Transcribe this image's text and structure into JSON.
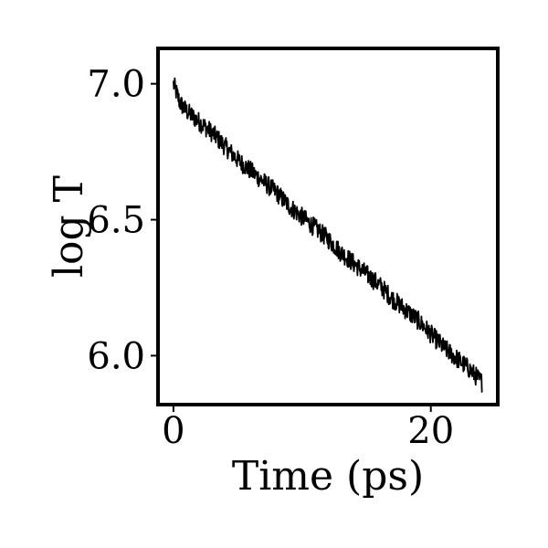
{
  "chart_data": {
    "type": "line",
    "title": "",
    "xlabel": "Time (ps)",
    "ylabel": "log T",
    "xlim": [
      -1.2,
      25.2
    ],
    "ylim": [
      5.82,
      7.13
    ],
    "xticks": [
      0,
      20
    ],
    "xtick_labels": [
      "0",
      "20"
    ],
    "yticks": [
      6.0,
      6.5,
      7.0
    ],
    "ytick_labels": [
      "6.0",
      "6.5",
      "7.0"
    ],
    "grid": false,
    "legend": "none",
    "line_color": "#000000",
    "series": [
      {
        "x": [
          0.0,
          0.5,
          1.0,
          2.0,
          3.0,
          4.0,
          5.0,
          6.0,
          7.0,
          8.0,
          9.0,
          10.0,
          11.0,
          12.0,
          13.0,
          14.0,
          15.0,
          16.0,
          17.0,
          18.0,
          19.0,
          20.0,
          21.0,
          22.0,
          23.0,
          24.0
        ],
        "y": [
          7.0,
          6.93,
          6.9,
          6.86,
          6.82,
          6.77,
          6.72,
          6.68,
          6.64,
          6.6,
          6.55,
          6.51,
          6.47,
          6.43,
          6.38,
          6.34,
          6.3,
          6.26,
          6.21,
          6.17,
          6.13,
          6.08,
          6.03,
          5.99,
          5.95,
          5.9
        ]
      }
    ]
  }
}
